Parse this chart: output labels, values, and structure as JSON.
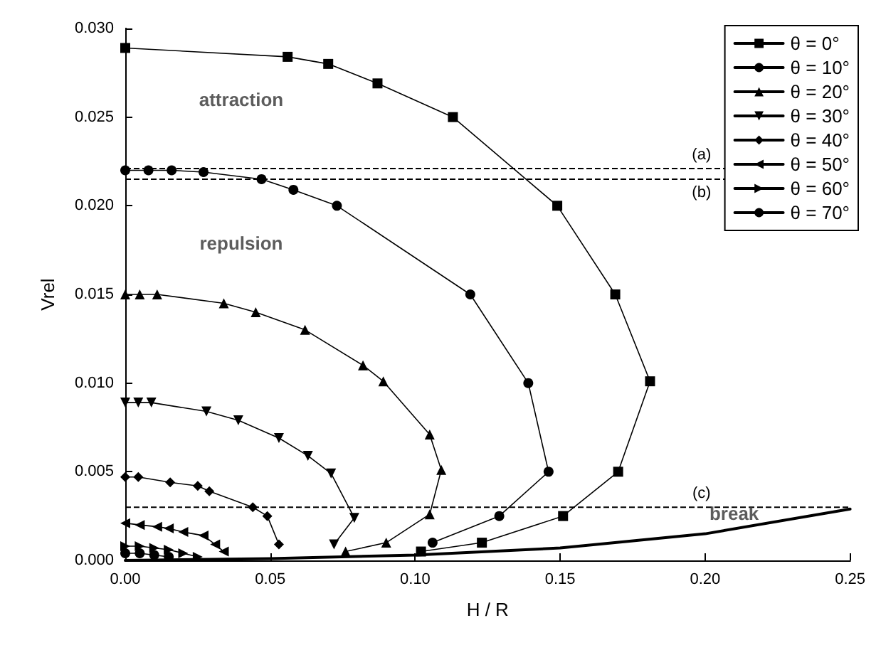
{
  "chart_data": {
    "type": "line",
    "xlabel": "H / R",
    "ylabel": "Vrel",
    "xlim": [
      0,
      0.25
    ],
    "ylim": [
      0,
      0.03
    ],
    "xticks": [
      {
        "value": 0,
        "label": "0.00"
      },
      {
        "value": 0.05,
        "label": "0.05"
      },
      {
        "value": 0.1,
        "label": "0.10"
      },
      {
        "value": 0.15,
        "label": "0.15"
      },
      {
        "value": 0.2,
        "label": "0.20"
      },
      {
        "value": 0.25,
        "label": "0.25"
      }
    ],
    "yticks": [
      {
        "value": 0,
        "label": "0.000"
      },
      {
        "value": 0.005,
        "label": "0.005"
      },
      {
        "value": 0.01,
        "label": "0.010"
      },
      {
        "value": 0.015,
        "label": "0.015"
      },
      {
        "value": 0.02,
        "label": "0.020"
      },
      {
        "value": 0.025,
        "label": "0.025"
      },
      {
        "value": 0.03,
        "label": "0.030"
      }
    ],
    "grid": false,
    "legend": "top right",
    "line_style": "solid",
    "series": [
      {
        "name": "θ = 0°",
        "color": "#000000",
        "marker": "square",
        "x": [
          0,
          0.056,
          0.07,
          0.087,
          0.113,
          0.149,
          0.169,
          0.181,
          0.17,
          0.151,
          0.123,
          0.102
        ],
        "values": [
          0.0289,
          0.0284,
          0.028,
          0.0269,
          0.025,
          0.02,
          0.015,
          0.0101,
          0.005,
          0.0025,
          0.001,
          0.0005
        ]
      },
      {
        "name": "θ = 10°",
        "color": "#000000",
        "marker": "circle",
        "x": [
          0,
          0.008,
          0.016,
          0.027,
          0.047,
          0.058,
          0.073,
          0.119,
          0.139,
          0.146,
          0.129,
          0.106
        ],
        "values": [
          0.022,
          0.022,
          0.022,
          0.0219,
          0.0215,
          0.0209,
          0.02,
          0.015,
          0.01,
          0.005,
          0.0025,
          0.001
        ]
      },
      {
        "name": "θ = 20°",
        "color": "#000000",
        "marker": "triangle",
        "x": [
          0,
          0.005,
          0.011,
          0.034,
          0.045,
          0.062,
          0.082,
          0.089,
          0.105,
          0.109,
          0.105,
          0.09,
          0.076
        ],
        "values": [
          0.015,
          0.015,
          0.015,
          0.0145,
          0.014,
          0.013,
          0.011,
          0.0101,
          0.0071,
          0.0051,
          0.0026,
          0.001,
          0.0005
        ]
      },
      {
        "name": "θ = 30°",
        "color": "#000000",
        "marker": "triangle-down",
        "x": [
          0,
          0.0045,
          0.009,
          0.028,
          0.039,
          0.053,
          0.063,
          0.071,
          0.079,
          0.072
        ],
        "values": [
          0.0089,
          0.0089,
          0.0089,
          0.0084,
          0.0079,
          0.0069,
          0.0059,
          0.0049,
          0.0024,
          0.0009
        ]
      },
      {
        "name": "θ = 40°",
        "color": "#000000",
        "marker": "diamond",
        "x": [
          0,
          0.0045,
          0.0155,
          0.025,
          0.029,
          0.044,
          0.049,
          0.053
        ],
        "values": [
          0.0047,
          0.0047,
          0.0044,
          0.0042,
          0.0039,
          0.003,
          0.0025,
          0.0009
        ]
      },
      {
        "name": "θ = 50°",
        "color": "#000000",
        "marker": "triangle-left",
        "x": [
          0,
          0.005,
          0.011,
          0.015,
          0.02,
          0.027,
          0.031,
          0.034
        ],
        "values": [
          0.0021,
          0.002,
          0.0019,
          0.0018,
          0.0016,
          0.0014,
          0.0009,
          0.0005
        ]
      },
      {
        "name": "θ = 60°",
        "color": "#000000",
        "marker": "triangle-right",
        "x": [
          0,
          0.005,
          0.01,
          0.015,
          0.02,
          0.025
        ],
        "values": [
          0.0008,
          0.0008,
          0.0007,
          0.0006,
          0.0004,
          0.0002
        ]
      },
      {
        "name": "θ = 70°",
        "color": "#000000",
        "marker": "circle",
        "x": [
          0,
          0.005,
          0.01,
          0.015
        ],
        "values": [
          0.0004,
          0.0004,
          0.0003,
          0.0002
        ]
      },
      {
        "color": "#000000",
        "marker": "none",
        "x": [
          0,
          0.05,
          0.1,
          0.15,
          0.2,
          0.25
        ],
        "values": [
          0,
          0.0001,
          0.0003,
          0.0007,
          0.0015,
          0.0029
        ]
      }
    ],
    "ref_lines": [
      {
        "axis": "y",
        "value": 0.0221,
        "label": "(a)",
        "line_style": "dashed",
        "color": "#000000"
      },
      {
        "axis": "y",
        "value": 0.0215,
        "label": "(b)",
        "line_style": "dashed",
        "color": "#000000"
      },
      {
        "axis": "y",
        "value": 0.003,
        "label": "(c)",
        "line_style": "dashed",
        "color": "#000000"
      }
    ],
    "annotations": [
      "attraction",
      "repulsion",
      {
        "text": "break",
        "x": 0.21,
        "y": 0.0018
      }
    ]
  }
}
